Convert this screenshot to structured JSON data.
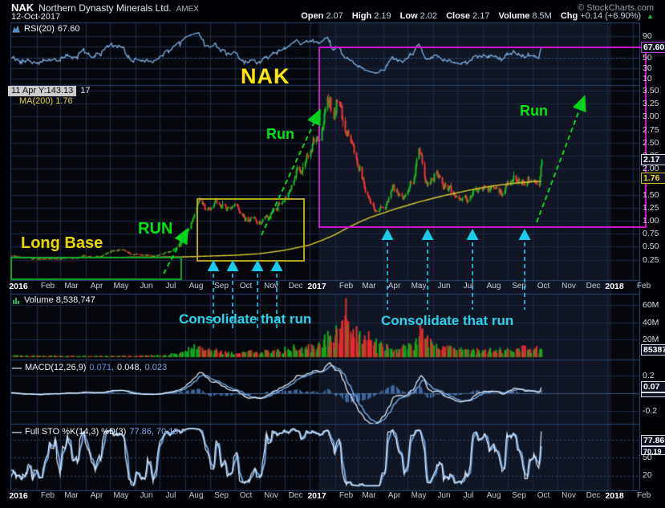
{
  "header": {
    "ticker": "NAK",
    "company": "Northern Dynasty Minerals Ltd.",
    "exchange": "AMEX",
    "date": "12-Oct-2017",
    "copyright": "© StockCharts.com",
    "quote": [
      {
        "label": "Open",
        "value": "2.07"
      },
      {
        "label": "High",
        "value": "2.19"
      },
      {
        "label": "Low",
        "value": "2.02"
      },
      {
        "label": "Close",
        "value": "2.17"
      },
      {
        "label": "Volume",
        "value": "8.5M"
      },
      {
        "label": "Chg",
        "value": "+0.14 (+6.90%)"
      }
    ],
    "chg_direction": "up"
  },
  "panels": {
    "rsi": {
      "legend": "RSI(20)",
      "legend_value": "67.60",
      "ticks": [
        "90",
        "50",
        "30",
        "10"
      ],
      "value_box": "67.60"
    },
    "price": {
      "ma_legend": "MA(200) 1.76",
      "tooltip": "11 Apr Y:143.13",
      "tooltip_extra": "17",
      "ticks": [
        "3.50",
        "3.25",
        "3.00",
        "2.75",
        "2.50",
        "2.25",
        "2.00",
        "1.50",
        "1.25",
        "1.00",
        "0.75",
        "0.50",
        "0.25"
      ],
      "last_price_box": "2.17",
      "ma_box": "1.76"
    },
    "volume": {
      "legend": "Volume 8,538,747",
      "ticks": [
        "60M",
        "40M",
        "20M"
      ],
      "value_box": "8538747"
    },
    "macd": {
      "legend": "MACD(12,26,9)",
      "values": [
        "0.071,",
        "0.048,",
        "0.023"
      ],
      "ticks": [
        "0.2",
        "-0.2"
      ],
      "value_box": "0.07"
    },
    "sto": {
      "legend": "Full STO %K(14,3) %D(3)",
      "values": "77.86, 70.19",
      "ticks": [
        "50",
        "20"
      ],
      "value_box": "77.86",
      "value_box2": "70.19"
    }
  },
  "annotations": {
    "symbol_watermark": "NAK",
    "long_base": "Long Base",
    "run_caps": "RUN",
    "run_1": "Run",
    "run_2": "Run",
    "consolidate_1": "Consolidate that run",
    "consolidate_2": "Consolidate that run"
  },
  "x_axis_labels": [
    "2016",
    "Feb",
    "Mar",
    "Apr",
    "May",
    "Jun",
    "Jul",
    "Aug",
    "Sep",
    "Oct",
    "Nov",
    "Dec",
    "2017",
    "Feb",
    "Mar",
    "Apr",
    "May",
    "Jun",
    "Jul",
    "Aug",
    "Sep",
    "Oct",
    "Nov",
    "Dec",
    "2018",
    "Feb"
  ],
  "chart_data": {
    "type": "candlestick",
    "symbol": "NAK",
    "timeframe": "daily",
    "date_range": [
      "2016-01-01",
      "2017-10-12"
    ],
    "price_ylim": [
      0.1,
      3.62
    ],
    "ohlc_last": {
      "open": 2.07,
      "high": 2.19,
      "low": 2.02,
      "close": 2.17,
      "volume": 8538747
    },
    "price_path_monthly": [
      [
        -2,
        0.31
      ],
      [
        -1,
        0.32
      ],
      [
        0,
        0.33
      ],
      [
        0.5,
        0.3
      ],
      [
        1.2,
        0.26
      ],
      [
        1.9,
        0.285
      ],
      [
        2.6,
        0.3
      ],
      [
        3.6,
        0.31
      ],
      [
        4.35,
        0.44
      ],
      [
        4.85,
        0.36
      ],
      [
        5.5,
        0.33
      ],
      [
        6.3,
        0.35
      ],
      [
        6.8,
        0.48
      ],
      [
        7.3,
        1.02
      ],
      [
        7.55,
        1.32
      ],
      [
        7.85,
        1.18
      ],
      [
        8.15,
        1.48
      ],
      [
        8.55,
        1.24
      ],
      [
        9.0,
        1.14
      ],
      [
        9.6,
        1.03
      ],
      [
        10.15,
        0.98
      ],
      [
        10.5,
        1.22
      ],
      [
        11.0,
        1.52
      ],
      [
        11.5,
        2.05
      ],
      [
        11.8,
        1.98
      ],
      [
        12.3,
        2.55
      ],
      [
        12.7,
        3.28
      ],
      [
        12.95,
        3.05
      ],
      [
        13.15,
        3.38
      ],
      [
        13.4,
        2.9
      ],
      [
        13.65,
        2.42
      ],
      [
        13.85,
        2.12
      ],
      [
        14.25,
        1.52
      ],
      [
        14.65,
        1.25
      ],
      [
        15.05,
        1.16
      ],
      [
        15.35,
        1.5
      ],
      [
        15.75,
        1.4
      ],
      [
        16.2,
        1.68
      ],
      [
        16.45,
        2.3
      ],
      [
        16.65,
        1.92
      ],
      [
        16.85,
        1.76
      ],
      [
        17.15,
        1.92
      ],
      [
        17.45,
        1.7
      ],
      [
        17.85,
        1.54
      ],
      [
        18.35,
        1.44
      ],
      [
        18.75,
        1.6
      ],
      [
        19.25,
        1.62
      ],
      [
        19.75,
        1.58
      ],
      [
        20.25,
        1.76
      ],
      [
        20.65,
        1.7
      ],
      [
        21.05,
        1.84
      ],
      [
        21.25,
        1.88
      ],
      [
        21.38,
        2.17
      ]
    ],
    "ma200_path": [
      [
        -2,
        0.29
      ],
      [
        2,
        0.29
      ],
      [
        4,
        0.295
      ],
      [
        6,
        0.3
      ],
      [
        7,
        0.305
      ],
      [
        8,
        0.32
      ],
      [
        9,
        0.335
      ],
      [
        10,
        0.365
      ],
      [
        11,
        0.43
      ],
      [
        12,
        0.53
      ],
      [
        12.5,
        0.62
      ],
      [
        13,
        0.72
      ],
      [
        13.5,
        0.85
      ],
      [
        14,
        0.97
      ],
      [
        14.5,
        1.07
      ],
      [
        15,
        1.15
      ],
      [
        15.5,
        1.23
      ],
      [
        16,
        1.3
      ],
      [
        16.5,
        1.37
      ],
      [
        17,
        1.43
      ],
      [
        17.5,
        1.49
      ],
      [
        18,
        1.54
      ],
      [
        18.5,
        1.59
      ],
      [
        19,
        1.635
      ],
      [
        19.5,
        1.675
      ],
      [
        20,
        1.705
      ],
      [
        20.5,
        1.73
      ],
      [
        21,
        1.75
      ],
      [
        21.4,
        1.76
      ]
    ],
    "volume_path_millions": [
      [
        -2,
        1.0
      ],
      [
        0,
        1.3
      ],
      [
        3,
        1.0
      ],
      [
        5,
        1.1
      ],
      [
        6,
        1.8
      ],
      [
        6.9,
        3.5
      ],
      [
        7.3,
        8
      ],
      [
        7.7,
        6.5
      ],
      [
        8.2,
        5.5
      ],
      [
        9,
        4
      ],
      [
        10,
        4.5
      ],
      [
        10.8,
        5.5
      ],
      [
        11.3,
        8
      ],
      [
        11.8,
        7.5
      ],
      [
        12.4,
        13
      ],
      [
        12.8,
        18
      ],
      [
        13.1,
        26
      ],
      [
        13.45,
        38
      ],
      [
        13.7,
        26
      ],
      [
        14.1,
        20
      ],
      [
        14.5,
        14
      ],
      [
        15,
        9
      ],
      [
        15.6,
        8
      ],
      [
        16.3,
        14
      ],
      [
        16.5,
        22
      ],
      [
        16.9,
        11
      ],
      [
        17.5,
        8
      ],
      [
        18.2,
        6.5
      ],
      [
        19,
        5.5
      ],
      [
        19.8,
        6.5
      ],
      [
        20.5,
        7
      ],
      [
        21,
        6.5
      ],
      [
        21.38,
        8.5
      ]
    ],
    "volume_spikes": [
      {
        "month": 12.85,
        "millions": 25,
        "dir": 1
      },
      {
        "month": 13.48,
        "millions": 68,
        "dir": -1
      },
      {
        "month": 14.02,
        "millions": 30,
        "dir": 1
      },
      {
        "month": 16.47,
        "millions": 40,
        "dir": -1
      },
      {
        "month": 16.55,
        "millions": 33,
        "dir": -1
      }
    ],
    "indicators": {
      "rsi": {
        "period": 20,
        "last": 67.6
      },
      "macd": {
        "params": [
          12,
          26,
          9
        ],
        "last": [
          0.071,
          0.048,
          0.023
        ]
      },
      "full_sto": {
        "params": "%K(14,3) %D(3)",
        "last": [
          77.86,
          70.19
        ]
      }
    },
    "colors": {
      "up": "#17b91f",
      "down": "#ef3434",
      "ma200": "#d9c92e",
      "indicator_line": "#7fb0e0",
      "annotation_green": "#00d41a",
      "annotation_yellow": "#e8d400",
      "annotation_cyan": "#29d5ee",
      "annotation_magenta": "#d013d0"
    }
  }
}
